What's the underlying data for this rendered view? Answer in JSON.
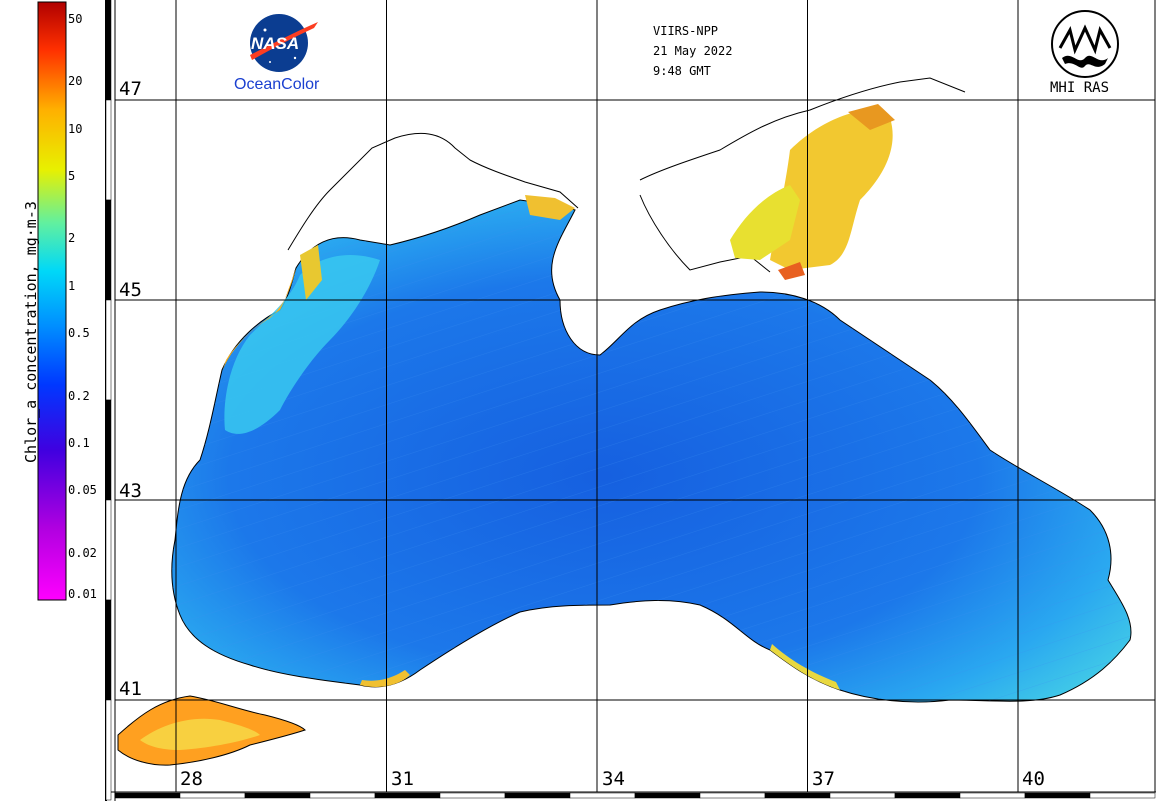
{
  "colorbar": {
    "title": "Chlor_a concentration, mg·m-3",
    "ticks": [
      {
        "label": "50",
        "value": 50
      },
      {
        "label": "20",
        "value": 20
      },
      {
        "label": "10",
        "value": 10
      },
      {
        "label": "5",
        "value": 5
      },
      {
        "label": "2",
        "value": 2
      },
      {
        "label": "1",
        "value": 1
      },
      {
        "label": "0.5",
        "value": 0.5
      },
      {
        "label": "0.2",
        "value": 0.2
      },
      {
        "label": "0.1",
        "value": 0.1
      },
      {
        "label": "0.05",
        "value": 0.05
      },
      {
        "label": "0.02",
        "value": 0.02
      },
      {
        "label": "0.01",
        "value": 0.01
      }
    ],
    "range": [
      0.01,
      64
    ],
    "scale": "log",
    "colors": [
      "#ff00ff",
      "#b000e0",
      "#3000e0",
      "#0040ff",
      "#00c8ff",
      "#50f0a0",
      "#e0f000",
      "#ffb000",
      "#ff4000",
      "#c00000"
    ]
  },
  "map": {
    "lat_labels": [
      "47",
      "45",
      "43",
      "41"
    ],
    "lon_labels": [
      "28",
      "31",
      "34",
      "37",
      "40"
    ],
    "lat_values": [
      47,
      45,
      43,
      41
    ],
    "lon_values": [
      28,
      31,
      34,
      37,
      40
    ],
    "sea_color": "#1a6fe8",
    "coastal_color": "#ffd000"
  },
  "header": {
    "sensor": "VIIRS-NPP",
    "date": "21 May 2022",
    "time": "9:48 GMT"
  },
  "logos": {
    "nasa_text": "NASA",
    "oceancolor_text": "OceanColor",
    "mhi_text": "MHI RAS",
    "nasa_icon": "nasa-meatball-logo",
    "mhi_icon": "mhi-ras-logo"
  }
}
